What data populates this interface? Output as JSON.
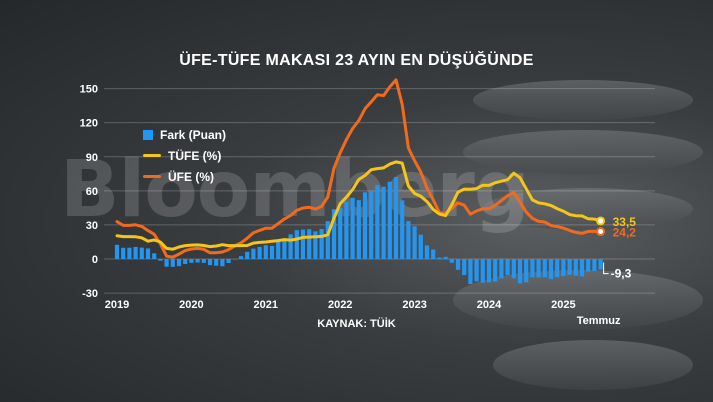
{
  "title": "ÜFE-TÜFE MAKASI 23 AYIN EN DÜŞÜĞÜNDE",
  "watermark": "Bloomberg",
  "source": "KAYNAK: TÜİK",
  "legend": [
    {
      "label": "Fark (Puan)",
      "color": "#2196f3"
    },
    {
      "label": "TÜFE (%)",
      "color": "#f5c518"
    },
    {
      "label": "ÜFE (%)",
      "color": "#f26b1d"
    }
  ],
  "end_labels": {
    "tufe": "33,5",
    "ufe": "24,2",
    "fark": "-9,3",
    "month": "Temmuz"
  },
  "chart_data": {
    "type": "line",
    "title": "ÜFE-TÜFE MAKASI 23 AYIN EN DÜŞÜĞÜNDE",
    "ylim": [
      -30,
      150
    ],
    "yticks": [
      -30,
      0,
      30,
      60,
      90,
      120,
      150
    ],
    "x_labels": [
      "2019",
      "2020",
      "2021",
      "2022",
      "2023",
      "2024",
      "2025"
    ],
    "x_start": "2019-01",
    "x_end": "2025-07",
    "grid": "horizontal",
    "legend_position": "left",
    "series": [
      {
        "name": "ÜFE (%)",
        "kind": "line",
        "color": "#f26b1d",
        "values": [
          32.9,
          29.6,
          29.6,
          30.1,
          28.7,
          25.0,
          21.7,
          13.5,
          2.5,
          1.7,
          4.3,
          7.4,
          8.8,
          9.3,
          8.5,
          5.5,
          5.5,
          6.2,
          8.3,
          11.5,
          14.3,
          18.2,
          23.1,
          25.2,
          27.1,
          27.1,
          31.2,
          35.2,
          38.3,
          42.9,
          44.9,
          45.5,
          43.9,
          46.3,
          54.6,
          79.9,
          93.5,
          105.0,
          114.9,
          121.8,
          132.2,
          138.3,
          144.6,
          143.8,
          151.5,
          157.7,
          136.0,
          97.7,
          86.5,
          76.6,
          62.4,
          52.1,
          40.8,
          40.1,
          44.5,
          49.4,
          47.4,
          39.4,
          42.3,
          44.2,
          44.2,
          47.3,
          51.5,
          55.7,
          58.6,
          50.1,
          41.3,
          35.8,
          33.1,
          32.6,
          29.5,
          28.5,
          27.2,
          25.2,
          23.4,
          22.5,
          24.3,
          24.5,
          24.2
        ]
      },
      {
        "name": "TÜFE (%)",
        "kind": "line",
        "color": "#f5c518",
        "values": [
          20.4,
          19.7,
          19.7,
          19.5,
          18.7,
          15.7,
          16.7,
          15.0,
          9.3,
          8.6,
          10.6,
          11.8,
          12.2,
          12.4,
          11.9,
          10.9,
          11.4,
          12.6,
          11.8,
          11.8,
          11.8,
          11.9,
          14.0,
          14.6,
          15.0,
          15.6,
          16.2,
          17.1,
          16.6,
          17.5,
          19.0,
          19.3,
          19.6,
          19.9,
          21.3,
          36.1,
          48.7,
          54.4,
          61.1,
          70.0,
          73.5,
          78.6,
          79.6,
          80.2,
          83.5,
          85.5,
          84.4,
          64.3,
          57.7,
          55.2,
          50.5,
          43.7,
          39.6,
          38.2,
          47.8,
          58.9,
          61.5,
          61.4,
          62.0,
          65.0,
          64.8,
          67.1,
          68.5,
          69.8,
          75.5,
          71.6,
          61.8,
          52.0,
          49.4,
          48.6,
          47.1,
          44.4,
          42.1,
          39.1,
          38.1,
          37.9,
          35.4,
          35.1,
          33.5
        ]
      },
      {
        "name": "Fark (Puan)",
        "kind": "bar",
        "color": "#2196f3",
        "values": [
          12.5,
          9.9,
          9.9,
          10.6,
          10.0,
          9.3,
          5.0,
          -1.5,
          -6.8,
          -6.9,
          -6.3,
          -4.4,
          -3.4,
          -3.1,
          -3.4,
          -5.4,
          -5.9,
          -6.4,
          -3.5,
          -0.3,
          2.5,
          6.3,
          9.1,
          10.6,
          12.1,
          11.5,
          15.0,
          18.1,
          21.7,
          25.4,
          25.9,
          26.2,
          24.3,
          26.4,
          33.3,
          43.8,
          44.8,
          50.6,
          53.8,
          51.8,
          58.7,
          59.7,
          65.0,
          63.6,
          68.0,
          72.2,
          51.6,
          33.4,
          28.8,
          21.4,
          11.9,
          8.4,
          1.2,
          1.9,
          -3.3,
          -9.5,
          -14.1,
          -22.0,
          -19.7,
          -20.8,
          -20.6,
          -19.8,
          -17.0,
          -14.1,
          -16.9,
          -21.5,
          -20.5,
          -16.2,
          -16.3,
          -16.0,
          -17.6,
          -15.9,
          -14.9,
          -13.9,
          -14.7,
          -15.4,
          -11.1,
          -10.6,
          -9.3
        ]
      }
    ]
  }
}
